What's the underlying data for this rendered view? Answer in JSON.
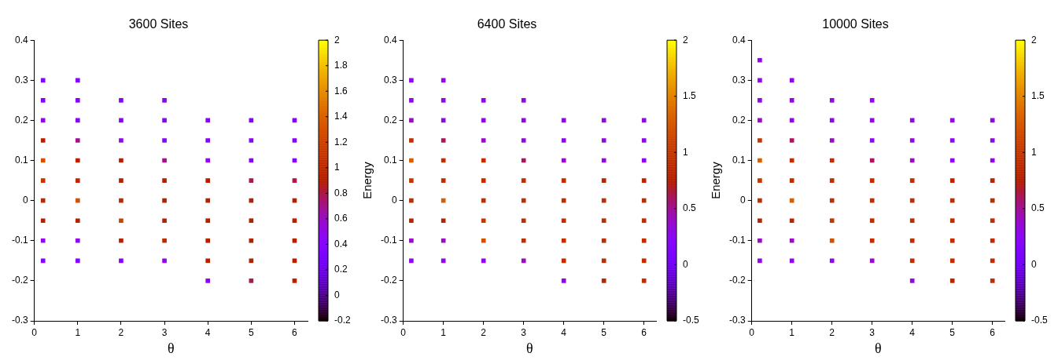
{
  "chart_data": [
    {
      "type": "scatter",
      "title": "3600 Sites",
      "xlabel": "θ",
      "xlim": [
        0,
        6.3
      ],
      "xticks": [
        0,
        1,
        2,
        3,
        4,
        5,
        6
      ],
      "ylim": [
        -0.3,
        0.4
      ],
      "yticks": [
        -0.3,
        -0.2,
        -0.1,
        0,
        0.1,
        0.2,
        0.3,
        0.4
      ],
      "clim": [
        -0.2,
        2
      ],
      "cticks": [
        -0.2,
        0,
        0.2,
        0.4,
        0.6,
        0.8,
        1,
        1.2,
        1.4,
        1.6,
        1.8,
        2
      ],
      "grid": false,
      "marker": "square",
      "series": [
        {
          "x": [
            0.2,
            0.2,
            0.2,
            0.2,
            0.2,
            0.2,
            0.2,
            0.2,
            0.2,
            0.2,
            1,
            1,
            1,
            1,
            1,
            1,
            1,
            1,
            1,
            1,
            2,
            2,
            2,
            2,
            2,
            2,
            2,
            2,
            2,
            3,
            3,
            3,
            3,
            3,
            3,
            3,
            3,
            3,
            4,
            4,
            4,
            4,
            4,
            4,
            4,
            4,
            4,
            5,
            5,
            5,
            5,
            5,
            5,
            5,
            5,
            5,
            6,
            6,
            6,
            6,
            6,
            6,
            6,
            6,
            6
          ],
          "values": [
            -0.15,
            -0.1,
            -0.05,
            0,
            0.05,
            0.1,
            0.15,
            0.2,
            0.25,
            0.3,
            -0.15,
            -0.1,
            -0.05,
            0,
            0.05,
            0.1,
            0.15,
            0.2,
            0.25,
            0.3,
            -0.15,
            -0.1,
            -0.05,
            0,
            0.05,
            0.1,
            0.15,
            0.2,
            0.25,
            -0.15,
            -0.1,
            -0.05,
            0,
            0.05,
            0.1,
            0.15,
            0.2,
            0.25,
            -0.2,
            -0.15,
            -0.1,
            -0.05,
            0,
            0.05,
            0.1,
            0.15,
            0.2,
            -0.2,
            -0.15,
            -0.1,
            -0.05,
            0,
            0.05,
            0.1,
            0.15,
            0.2,
            -0.2,
            -0.15,
            -0.1,
            -0.05,
            0,
            0.05,
            0.1,
            0.15,
            0.2
          ],
          "cvalues": [
            0.4,
            0.5,
            0.9,
            1,
            1.1,
            1.3,
            0.9,
            0.5,
            0.4,
            0.4,
            0.4,
            0.5,
            0.9,
            1.3,
            1,
            0.9,
            0.7,
            0.4,
            0.4,
            0.4,
            0.4,
            0.9,
            1.2,
            1,
            0.9,
            0.9,
            0.5,
            0.4,
            0.4,
            0.5,
            1,
            0.9,
            0.9,
            0.9,
            0.7,
            0.4,
            0.4,
            0.4,
            0.4,
            0.9,
            0.9,
            0.9,
            0.9,
            0.9,
            0.5,
            0.4,
            0.4,
            0.8,
            0.9,
            0.9,
            0.9,
            0.9,
            0.8,
            0.4,
            0.4,
            0.4,
            0.9,
            0.9,
            0.9,
            0.9,
            0.9,
            0.8,
            0.4,
            0.4,
            0.4
          ]
        }
      ]
    },
    {
      "type": "scatter",
      "title": "6400 Sites",
      "xlabel": "θ",
      "ylabel": "Energy",
      "xlim": [
        0,
        6.3
      ],
      "xticks": [
        0,
        1,
        2,
        3,
        4,
        5,
        6
      ],
      "ylim": [
        -0.3,
        0.4
      ],
      "yticks": [
        -0.3,
        -0.2,
        -0.1,
        0,
        0.1,
        0.2,
        0.3,
        0.4
      ],
      "clim": [
        -0.5,
        2
      ],
      "cticks": [
        -0.5,
        0,
        0.5,
        1,
        1.5,
        2
      ],
      "grid": false,
      "marker": "square",
      "series": [
        {
          "x": [
            0.2,
            0.2,
            0.2,
            0.2,
            0.2,
            0.2,
            0.2,
            0.2,
            0.2,
            0.2,
            1,
            1,
            1,
            1,
            1,
            1,
            1,
            1,
            1,
            1,
            2,
            2,
            2,
            2,
            2,
            2,
            2,
            2,
            2,
            3,
            3,
            3,
            3,
            3,
            3,
            3,
            3,
            3,
            4,
            4,
            4,
            4,
            4,
            4,
            4,
            4,
            4,
            5,
            5,
            5,
            5,
            5,
            5,
            5,
            5,
            5,
            6,
            6,
            6,
            6,
            6,
            6,
            6,
            6,
            6
          ],
          "values": [
            -0.15,
            -0.1,
            -0.05,
            0,
            0.05,
            0.1,
            0.15,
            0.2,
            0.25,
            0.3,
            -0.15,
            -0.1,
            -0.05,
            0,
            0.05,
            0.1,
            0.15,
            0.2,
            0.25,
            0.3,
            -0.15,
            -0.1,
            -0.05,
            0,
            0.05,
            0.1,
            0.15,
            0.2,
            0.25,
            -0.15,
            -0.1,
            -0.05,
            0,
            0.05,
            0.1,
            0.15,
            0.2,
            0.25,
            -0.2,
            -0.15,
            -0.1,
            -0.05,
            0,
            0.05,
            0.1,
            0.15,
            0.2,
            -0.2,
            -0.15,
            -0.1,
            -0.05,
            0,
            0.05,
            0.1,
            0.15,
            0.2,
            -0.2,
            -0.15,
            -0.1,
            -0.05,
            0,
            0.05,
            0.1,
            0.15,
            0.2
          ],
          "cvalues": [
            0.3,
            0.4,
            0.8,
            0.9,
            1,
            1.3,
            0.9,
            0.4,
            0.3,
            0.3,
            0.3,
            0.4,
            0.8,
            1.3,
            0.9,
            0.9,
            0.6,
            0.3,
            0.3,
            0.3,
            0.3,
            1.2,
            1,
            0.9,
            0.9,
            0.9,
            0.4,
            0.3,
            0.3,
            0.4,
            0.9,
            0.9,
            0.9,
            0.9,
            0.6,
            0.3,
            0.3,
            0.3,
            0.3,
            0.9,
            0.9,
            0.9,
            0.9,
            0.9,
            0.4,
            0.3,
            0.3,
            0.8,
            0.9,
            0.9,
            0.9,
            0.9,
            0.8,
            0.3,
            0.3,
            0.3,
            0.9,
            0.9,
            0.9,
            0.9,
            0.9,
            0.8,
            0.3,
            0.3,
            0.3
          ]
        }
      ]
    },
    {
      "type": "scatter",
      "title": "10000 Sites",
      "xlabel": "θ",
      "ylabel": "Energy",
      "xlim": [
        0,
        6.3
      ],
      "xticks": [
        0,
        1,
        2,
        3,
        4,
        5,
        6
      ],
      "ylim": [
        -0.3,
        0.4
      ],
      "yticks": [
        -0.3,
        -0.2,
        -0.1,
        0,
        0.1,
        0.2,
        0.3,
        0.4
      ],
      "clim": [
        -0.5,
        2
      ],
      "cticks": [
        -0.5,
        0,
        0.5,
        1,
        1.5,
        2
      ],
      "grid": false,
      "marker": "square",
      "series": [
        {
          "x": [
            0.2,
            0.2,
            0.2,
            0.2,
            0.2,
            0.2,
            0.2,
            0.2,
            0.2,
            0.2,
            0.2,
            1,
            1,
            1,
            1,
            1,
            1,
            1,
            1,
            1,
            1,
            2,
            2,
            2,
            2,
            2,
            2,
            2,
            2,
            2,
            3,
            3,
            3,
            3,
            3,
            3,
            3,
            3,
            3,
            4,
            4,
            4,
            4,
            4,
            4,
            4,
            4,
            4,
            5,
            5,
            5,
            5,
            5,
            5,
            5,
            5,
            5,
            6,
            6,
            6,
            6,
            6,
            6,
            6,
            6,
            6
          ],
          "values": [
            -0.15,
            -0.1,
            -0.05,
            0,
            0.05,
            0.1,
            0.15,
            0.2,
            0.25,
            0.3,
            0.35,
            -0.15,
            -0.1,
            -0.05,
            0,
            0.05,
            0.1,
            0.15,
            0.2,
            0.25,
            0.3,
            -0.15,
            -0.1,
            -0.05,
            0,
            0.05,
            0.1,
            0.15,
            0.2,
            0.25,
            -0.15,
            -0.1,
            -0.05,
            0,
            0.05,
            0.1,
            0.15,
            0.2,
            0.25,
            -0.2,
            -0.15,
            -0.1,
            -0.05,
            0,
            0.05,
            0.1,
            0.15,
            0.2,
            -0.2,
            -0.15,
            -0.1,
            -0.05,
            0,
            0.05,
            0.1,
            0.15,
            0.2,
            -0.2,
            -0.15,
            -0.1,
            -0.05,
            0,
            0.05,
            0.1,
            0.15,
            0.2
          ],
          "cvalues": [
            0.3,
            0.4,
            0.8,
            0.9,
            1,
            1.3,
            1,
            0.4,
            0.3,
            0.3,
            0.3,
            0.3,
            0.4,
            0.8,
            1.3,
            0.9,
            0.9,
            0.6,
            0.3,
            0.3,
            0.3,
            0.3,
            1.2,
            1,
            0.9,
            0.9,
            0.9,
            0.4,
            0.3,
            0.3,
            0.4,
            0.9,
            0.9,
            0.9,
            0.9,
            0.6,
            0.3,
            0.3,
            0.3,
            0.3,
            0.9,
            0.9,
            0.9,
            0.9,
            0.9,
            0.4,
            0.3,
            0.3,
            0.8,
            0.9,
            0.9,
            0.9,
            0.9,
            0.8,
            0.3,
            0.3,
            0.3,
            0.9,
            0.9,
            0.9,
            0.9,
            0.9,
            0.8,
            0.3,
            0.3,
            0.3
          ]
        }
      ]
    }
  ]
}
